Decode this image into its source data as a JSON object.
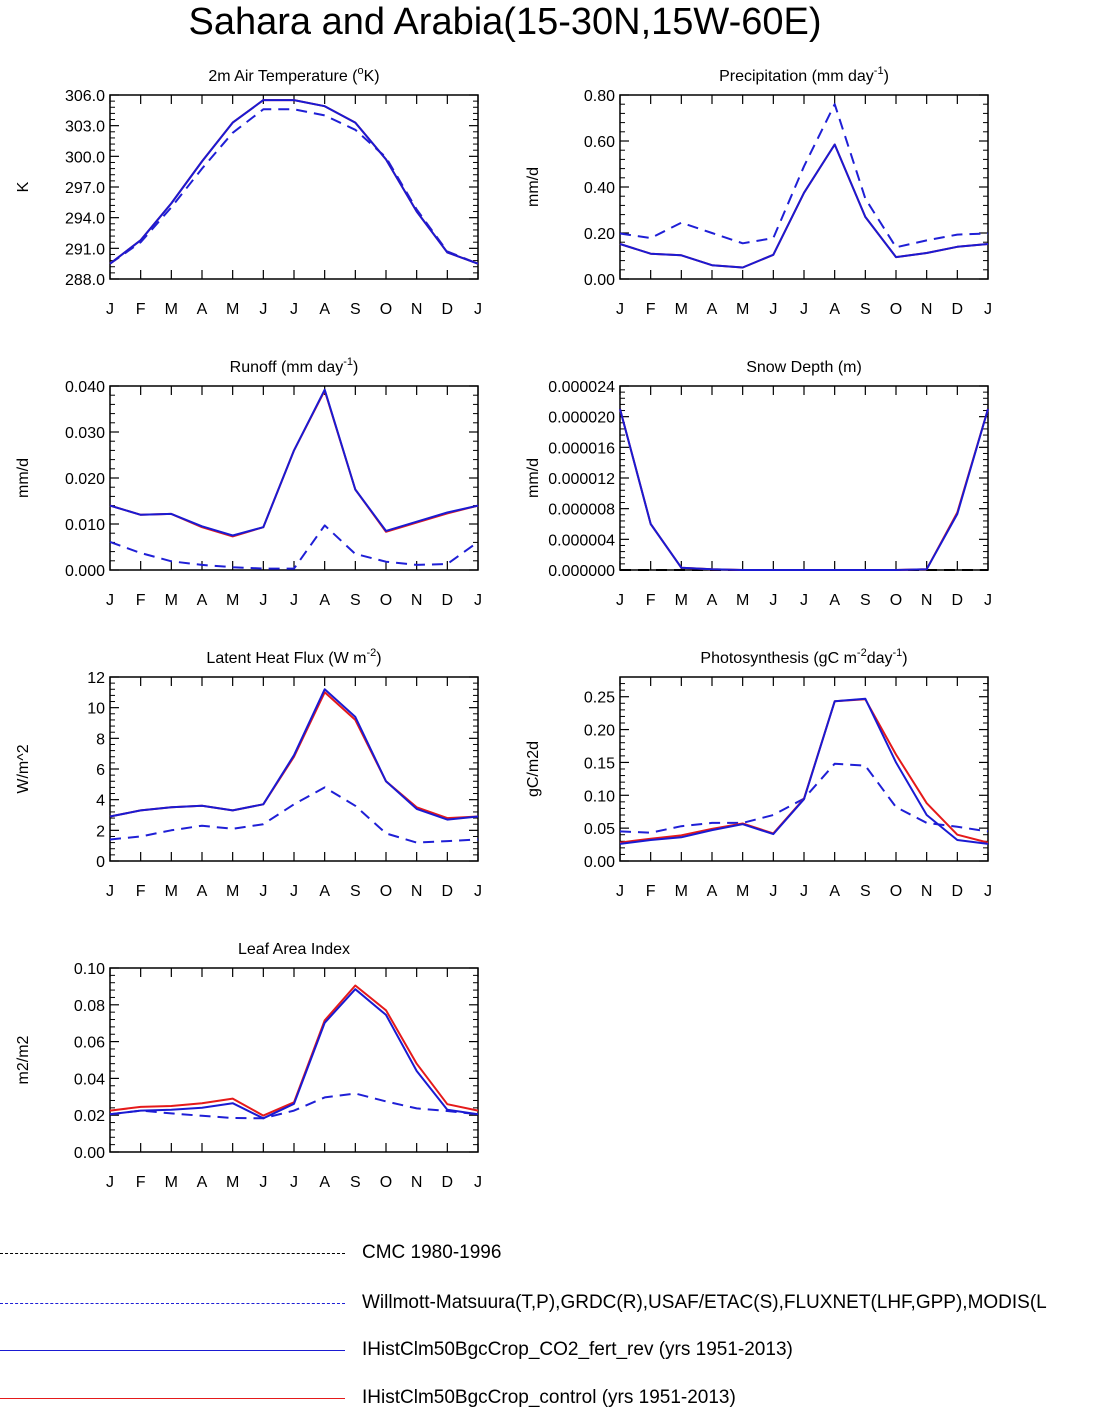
{
  "title": "Sahara and Arabia(15-30N,15W-60E)",
  "colors": {
    "cmc": "#000000",
    "obs": "#1f1fd6",
    "co2": "#1a1ad2",
    "control": "#e51a1a"
  },
  "months": [
    "J",
    "F",
    "M",
    "A",
    "M",
    "J",
    "J",
    "A",
    "S",
    "O",
    "N",
    "D",
    "J"
  ],
  "legend": [
    {
      "label": "CMC 1980-1996",
      "color": "#000000",
      "style": "dashed"
    },
    {
      "label": "Willmott-Matsuura(T,P),GRDC(R),USAF/ETAC(S),FLUXNET(LHF,GPP),MODIS(L",
      "color": "#1f1fd6",
      "style": "dashed"
    },
    {
      "label": "IHistClm50BgcCrop_CO2_fert_rev (yrs 1951-2013)",
      "color": "#1a1ad2",
      "style": "solid"
    },
    {
      "label": "IHistClm50BgcCrop_control (yrs 1951-2013)",
      "color": "#e51a1a",
      "style": "solid"
    }
  ],
  "chart_data": [
    {
      "type": "line",
      "title": "2m Air Temperature (",
      "title_sup": "o",
      "title_after": "K)",
      "ylabel": "K",
      "ylim": [
        288.0,
        306.0
      ],
      "yticks": [
        288.0,
        291.0,
        294.0,
        297.0,
        300.0,
        303.0,
        306.0
      ],
      "ytick_labels": [
        "288.0",
        "291.0",
        "294.0",
        "297.0",
        "300.0",
        "303.0",
        "306.0"
      ],
      "categories": [
        "J",
        "F",
        "M",
        "A",
        "M",
        "J",
        "J",
        "A",
        "S",
        "O",
        "N",
        "D",
        "J"
      ],
      "series": [
        {
          "name": "Willmott-Matsuura",
          "style": "dashed",
          "color": "#1f1fd6",
          "values": [
            289.5,
            291.6,
            295.0,
            298.8,
            302.3,
            304.6,
            304.6,
            304.0,
            302.6,
            299.9,
            294.8,
            290.7,
            289.5
          ]
        },
        {
          "name": "IHistClm50BgcCrop_control",
          "style": "solid",
          "color": "#e51a1a",
          "values": [
            289.5,
            291.8,
            295.4,
            299.5,
            303.3,
            305.5,
            305.5,
            304.9,
            303.3,
            299.7,
            294.6,
            290.6,
            289.5
          ]
        },
        {
          "name": "IHistClm50BgcCrop_CO2_fert_rev",
          "style": "solid",
          "color": "#1a1ad2",
          "values": [
            289.5,
            291.8,
            295.4,
            299.5,
            303.3,
            305.5,
            305.5,
            304.9,
            303.3,
            299.7,
            294.6,
            290.6,
            289.5
          ]
        }
      ]
    },
    {
      "type": "line",
      "title": "Precipitation (mm day",
      "title_sup": "-1",
      "title_after": ")",
      "ylabel": "mm/d",
      "ylim": [
        0.0,
        0.8
      ],
      "yticks": [
        0.0,
        0.2,
        0.4,
        0.6,
        0.8
      ],
      "ytick_labels": [
        "0.00",
        "0.20",
        "0.40",
        "0.60",
        "0.80"
      ],
      "categories": [
        "J",
        "F",
        "M",
        "A",
        "M",
        "J",
        "J",
        "A",
        "S",
        "O",
        "N",
        "D",
        "J"
      ],
      "series": [
        {
          "name": "Willmott-Matsuura",
          "style": "dashed",
          "color": "#1f1fd6",
          "values": [
            0.198,
            0.178,
            0.245,
            0.2,
            0.155,
            0.178,
            0.49,
            0.76,
            0.35,
            0.138,
            0.168,
            0.193,
            0.198
          ]
        },
        {
          "name": "IHistClm50BgcCrop_control",
          "style": "solid",
          "color": "#e51a1a",
          "values": [
            0.152,
            0.11,
            0.103,
            0.06,
            0.05,
            0.105,
            0.375,
            0.585,
            0.27,
            0.095,
            0.113,
            0.14,
            0.152
          ]
        },
        {
          "name": "IHistClm50BgcCrop_CO2_fert_rev",
          "style": "solid",
          "color": "#1a1ad2",
          "values": [
            0.152,
            0.11,
            0.103,
            0.06,
            0.05,
            0.105,
            0.375,
            0.585,
            0.27,
            0.095,
            0.113,
            0.14,
            0.152
          ]
        }
      ]
    },
    {
      "type": "line",
      "title": "Runoff (mm day",
      "title_sup": "-1",
      "title_after": ")",
      "ylabel": "mm/d",
      "ylim": [
        0.0,
        0.04
      ],
      "yticks": [
        0.0,
        0.01,
        0.02,
        0.03,
        0.04
      ],
      "ytick_labels": [
        "0.000",
        "0.010",
        "0.020",
        "0.030",
        "0.040"
      ],
      "categories": [
        "J",
        "F",
        "M",
        "A",
        "M",
        "J",
        "J",
        "A",
        "S",
        "O",
        "N",
        "D",
        "J"
      ],
      "series": [
        {
          "name": "Willmott-Matsuura",
          "style": "dashed",
          "color": "#1f1fd6",
          "values": [
            0.0061,
            0.0037,
            0.0019,
            0.0011,
            0.0006,
            0.0003,
            0.0003,
            0.0097,
            0.0035,
            0.0018,
            0.0011,
            0.0013,
            0.0061
          ]
        },
        {
          "name": "IHistClm50BgcCrop_control",
          "style": "solid",
          "color": "#e51a1a",
          "values": [
            0.014,
            0.012,
            0.0122,
            0.0093,
            0.0073,
            0.0093,
            0.026,
            0.039,
            0.0175,
            0.0083,
            0.0103,
            0.0123,
            0.014
          ]
        },
        {
          "name": "IHistClm50BgcCrop_CO2_fert_rev",
          "style": "solid",
          "color": "#1a1ad2",
          "values": [
            0.014,
            0.012,
            0.0122,
            0.0095,
            0.0075,
            0.0093,
            0.026,
            0.0392,
            0.0175,
            0.0085,
            0.0105,
            0.0125,
            0.014
          ]
        }
      ]
    },
    {
      "type": "line",
      "title": "Snow Depth (m)",
      "title_sup": "",
      "title_after": "",
      "ylabel": "mm/d",
      "ylim": [
        0.0,
        2.4e-05
      ],
      "yticks": [
        0.0,
        4e-06,
        8e-06,
        1.2e-05,
        1.6e-05,
        2e-05,
        2.4e-05
      ],
      "ytick_labels": [
        "0.000000",
        "0.000004",
        "0.000008",
        "0.000012",
        "0.000016",
        "0.000020",
        "0.000024"
      ],
      "categories": [
        "J",
        "F",
        "M",
        "A",
        "M",
        "J",
        "J",
        "A",
        "S",
        "O",
        "N",
        "D",
        "J"
      ],
      "series": [
        {
          "name": "CMC 1980-1996",
          "style": "dashed",
          "color": "#000000",
          "values": [
            0,
            0,
            0,
            0,
            0,
            0,
            0,
            0,
            0,
            0,
            0,
            0,
            0
          ]
        },
        {
          "name": "IHistClm50BgcCrop_control",
          "style": "solid",
          "color": "#e51a1a",
          "values": [
            2.1e-05,
            6e-06,
            3e-07,
            1e-07,
            0,
            0,
            0,
            0,
            0,
            0,
            1e-07,
            7.5e-06,
            2.1e-05
          ]
        },
        {
          "name": "IHistClm50BgcCrop_CO2_fert_rev",
          "style": "solid",
          "color": "#1a1ad2",
          "values": [
            2.1e-05,
            6e-06,
            3e-07,
            1e-07,
            0,
            0,
            0,
            0,
            0,
            0,
            1e-07,
            7.3e-06,
            2.1e-05
          ]
        }
      ]
    },
    {
      "type": "line",
      "title": "Latent Heat Flux (W m",
      "title_sup": "-2",
      "title_after": ")",
      "ylabel": "W/m^2",
      "ylim": [
        0,
        12
      ],
      "yticks": [
        0,
        2,
        4,
        6,
        8,
        10,
        12
      ],
      "ytick_labels": [
        "0",
        "2",
        "4",
        "6",
        "8",
        "10",
        "12"
      ],
      "categories": [
        "J",
        "F",
        "M",
        "A",
        "M",
        "J",
        "J",
        "A",
        "S",
        "O",
        "N",
        "D",
        "J"
      ],
      "series": [
        {
          "name": "Willmott-Matsuura",
          "style": "dashed",
          "color": "#1f1fd6",
          "values": [
            1.4,
            1.6,
            2.0,
            2.3,
            2.1,
            2.4,
            3.7,
            4.8,
            3.6,
            1.8,
            1.2,
            1.3,
            1.4
          ]
        },
        {
          "name": "IHistClm50BgcCrop_control",
          "style": "solid",
          "color": "#e51a1a",
          "values": [
            2.9,
            3.3,
            3.5,
            3.6,
            3.3,
            3.7,
            6.8,
            11.0,
            9.2,
            5.2,
            3.5,
            2.8,
            2.9
          ]
        },
        {
          "name": "IHistClm50BgcCrop_CO2_fert_rev",
          "style": "solid",
          "color": "#1a1ad2",
          "values": [
            2.9,
            3.3,
            3.5,
            3.6,
            3.3,
            3.7,
            6.9,
            11.2,
            9.4,
            5.2,
            3.4,
            2.7,
            2.9
          ]
        }
      ]
    },
    {
      "type": "line",
      "title": "Photosynthesis (gC m",
      "title_sup": "-2",
      "title_after": "day",
      "title_sup2": "-1",
      "title_after2": ")",
      "ylabel": "gC/m2d",
      "ylim": [
        0.0,
        0.28
      ],
      "yticks": [
        0.0,
        0.05,
        0.1,
        0.15,
        0.2,
        0.25
      ],
      "ytick_labels": [
        "0.00",
        "0.05",
        "0.10",
        "0.15",
        "0.20",
        "0.25"
      ],
      "categories": [
        "J",
        "F",
        "M",
        "A",
        "M",
        "J",
        "J",
        "A",
        "S",
        "O",
        "N",
        "D",
        "J"
      ],
      "series": [
        {
          "name": "Willmott-Matsuura",
          "style": "dashed",
          "color": "#1f1fd6",
          "values": [
            0.045,
            0.043,
            0.053,
            0.058,
            0.058,
            0.07,
            0.095,
            0.148,
            0.145,
            0.082,
            0.058,
            0.052,
            0.045
          ]
        },
        {
          "name": "IHistClm50BgcCrop_control",
          "style": "solid",
          "color": "#e51a1a",
          "values": [
            0.028,
            0.034,
            0.039,
            0.049,
            0.057,
            0.042,
            0.095,
            0.243,
            0.246,
            0.162,
            0.088,
            0.04,
            0.028
          ]
        },
        {
          "name": "IHistClm50BgcCrop_CO2_fert_rev",
          "style": "solid",
          "color": "#1a1ad2",
          "values": [
            0.026,
            0.032,
            0.036,
            0.047,
            0.056,
            0.041,
            0.094,
            0.243,
            0.247,
            0.15,
            0.07,
            0.032,
            0.026
          ]
        }
      ]
    },
    {
      "type": "line",
      "title": "Leaf Area Index",
      "title_sup": "",
      "title_after": "",
      "ylabel": "m2/m2",
      "ylim": [
        0.0,
        0.1
      ],
      "yticks": [
        0.0,
        0.02,
        0.04,
        0.06,
        0.08,
        0.1
      ],
      "ytick_labels": [
        "0.00",
        "0.02",
        "0.04",
        "0.06",
        "0.08",
        "0.10"
      ],
      "categories": [
        "J",
        "F",
        "M",
        "A",
        "M",
        "J",
        "J",
        "A",
        "S",
        "O",
        "N",
        "D",
        "J"
      ],
      "series": [
        {
          "name": "Willmott-Matsuura",
          "style": "dashed",
          "color": "#1f1fd6",
          "values": [
            0.0205,
            0.0225,
            0.021,
            0.0197,
            0.0185,
            0.0183,
            0.0225,
            0.0297,
            0.0318,
            0.0275,
            0.0237,
            0.0223,
            0.0205
          ]
        },
        {
          "name": "IHistClm50BgcCrop_control",
          "style": "solid",
          "color": "#e51a1a",
          "values": [
            0.0225,
            0.0245,
            0.025,
            0.0265,
            0.029,
            0.0198,
            0.027,
            0.0715,
            0.0905,
            0.077,
            0.048,
            0.026,
            0.0225
          ]
        },
        {
          "name": "IHistClm50BgcCrop_CO2_fert_rev",
          "style": "solid",
          "color": "#1a1ad2",
          "values": [
            0.0205,
            0.0225,
            0.023,
            0.024,
            0.0265,
            0.0183,
            0.0262,
            0.0702,
            0.0885,
            0.0745,
            0.044,
            0.023,
            0.0205
          ]
        }
      ]
    }
  ]
}
